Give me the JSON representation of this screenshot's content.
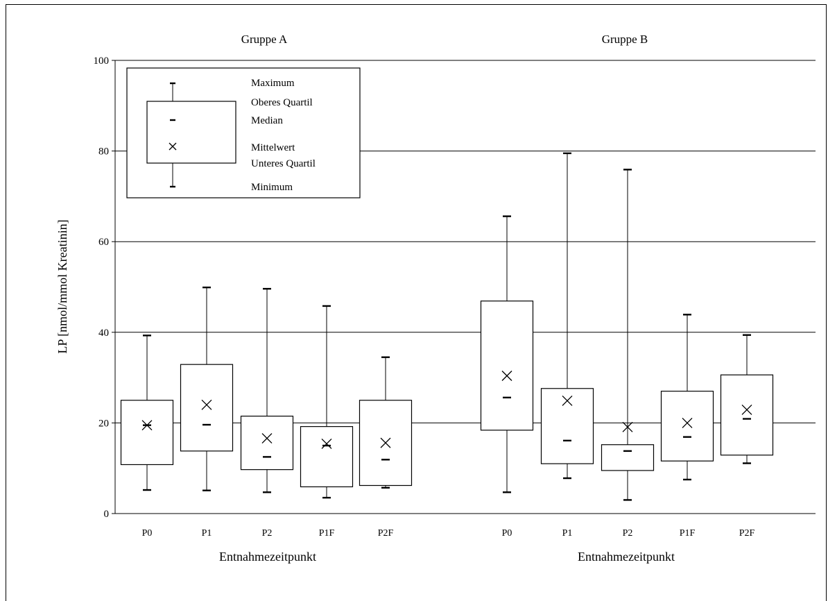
{
  "chart_data": {
    "type": "boxplot",
    "ylabel": "LP [nmol/mmol Kreatinin]",
    "ylim": [
      0,
      100
    ],
    "yticks": [
      0,
      20,
      40,
      60,
      80,
      100
    ],
    "grid": true,
    "groups": [
      {
        "title": "Gruppe A",
        "xlabel": "Entnahmezeitpunkt",
        "boxes": [
          {
            "label": "P0",
            "min": 5.2,
            "q1": 10.8,
            "median": 19.5,
            "mean": 19.5,
            "q3": 25.0,
            "max": 39.3
          },
          {
            "label": "P1",
            "min": 5.1,
            "q1": 13.8,
            "median": 19.6,
            "mean": 24.0,
            "q3": 32.9,
            "max": 49.9
          },
          {
            "label": "P2",
            "min": 4.7,
            "q1": 9.7,
            "median": 12.5,
            "mean": 16.6,
            "q3": 21.5,
            "max": 49.6
          },
          {
            "label": "P1F",
            "min": 3.5,
            "q1": 5.9,
            "median": 15.0,
            "mean": 15.4,
            "q3": 19.2,
            "max": 45.8
          },
          {
            "label": "P2F",
            "min": 5.7,
            "q1": 6.2,
            "median": 11.9,
            "mean": 15.6,
            "q3": 25.0,
            "max": 34.5
          }
        ]
      },
      {
        "title": "Gruppe B",
        "xlabel": "Entnahmezeitpunkt",
        "boxes": [
          {
            "label": "P0",
            "min": 4.7,
            "q1": 18.4,
            "median": 25.6,
            "mean": 30.4,
            "q3": 46.9,
            "max": 65.6
          },
          {
            "label": "P1",
            "min": 7.8,
            "q1": 11.0,
            "median": 16.1,
            "mean": 24.9,
            "q3": 27.6,
            "max": 79.5
          },
          {
            "label": "P2",
            "min": 3.0,
            "q1": 9.5,
            "median": 13.8,
            "mean": 19.1,
            "q3": 15.2,
            "max": 75.9
          },
          {
            "label": "P1F",
            "min": 7.5,
            "q1": 11.6,
            "median": 16.9,
            "mean": 20.0,
            "q3": 27.0,
            "max": 43.9
          },
          {
            "label": "P2F",
            "min": 11.1,
            "q1": 12.9,
            "median": 20.9,
            "mean": 22.9,
            "q3": 30.6,
            "max": 39.4
          }
        ]
      }
    ],
    "legend": {
      "placement": "top-left",
      "items": {
        "max": "Maximum",
        "q3": "Oberes Quartil",
        "median": "Median",
        "mean": "Mittelwert",
        "q1": "Unteres Quartil",
        "min": "Minimum"
      }
    }
  }
}
